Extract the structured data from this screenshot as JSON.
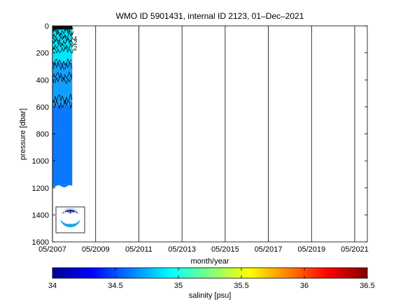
{
  "chart_data": {
    "type": "heatmap",
    "title": "WMO ID 5901431, internal ID 2123, 01–Dec–2021",
    "xlabel": "month/year",
    "ylabel": "pressure [dbar]",
    "x_tick_labels": [
      "05/2007",
      "05/2009",
      "05/2011",
      "05/2013",
      "05/2015",
      "05/2017",
      "05/2019",
      "05/2021"
    ],
    "xlim": [
      "05/2007",
      "12/2021"
    ],
    "ylim": [
      0,
      1600
    ],
    "y_reversed": true,
    "y_ticks": [
      0,
      200,
      400,
      600,
      800,
      1000,
      1200,
      1400,
      1600
    ],
    "grid": "vertical lines",
    "profile_span": [
      "05/2007",
      "04/2008"
    ],
    "salinity_layers": [
      {
        "pressure_top": 0,
        "pressure_bottom": 25,
        "salinity": 34.8,
        "color": "#1fb6ff"
      },
      {
        "pressure_top": 25,
        "pressure_bottom": 270,
        "salinity": 34.9,
        "color": "#00e6ff"
      },
      {
        "pressure_top": 270,
        "pressure_bottom": 590,
        "salinity": 34.7,
        "color": "#12a0ff"
      },
      {
        "pressure_top": 590,
        "pressure_bottom": 1180,
        "salinity": 34.6,
        "color": "#0a78ff"
      }
    ],
    "contour_labels": [
      "4",
      "2",
      "2"
    ],
    "colorbar": {
      "label": "salinity [psu]",
      "min": 34,
      "max": 36.5,
      "tick_labels": [
        "34",
        "34.5",
        "35",
        "35.5",
        "36",
        "36.5"
      ],
      "colormap": "jet"
    },
    "logo": "NOAA"
  }
}
